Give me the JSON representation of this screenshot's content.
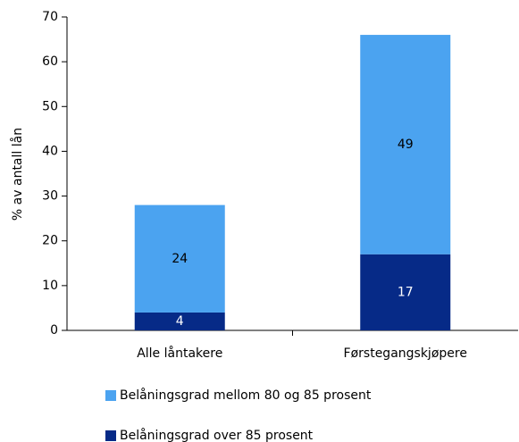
{
  "chart_data": {
    "type": "stacked_bar",
    "ylabel": "% av antall lån",
    "categories": [
      "Alle låntakere",
      "Førstegangskjøpere"
    ],
    "series": [
      {
        "name": "Belåningsgrad mellom 80 og 85 prosent",
        "color": "#4ba3f0",
        "values": [
          24,
          49
        ]
      },
      {
        "name": "Belåningsgrad over 85 prosent",
        "color": "#062a87",
        "values": [
          4,
          17
        ]
      }
    ],
    "ylim": [
      0,
      70
    ],
    "yticks": [
      0,
      10,
      20,
      30,
      40,
      50,
      60,
      70
    ]
  }
}
